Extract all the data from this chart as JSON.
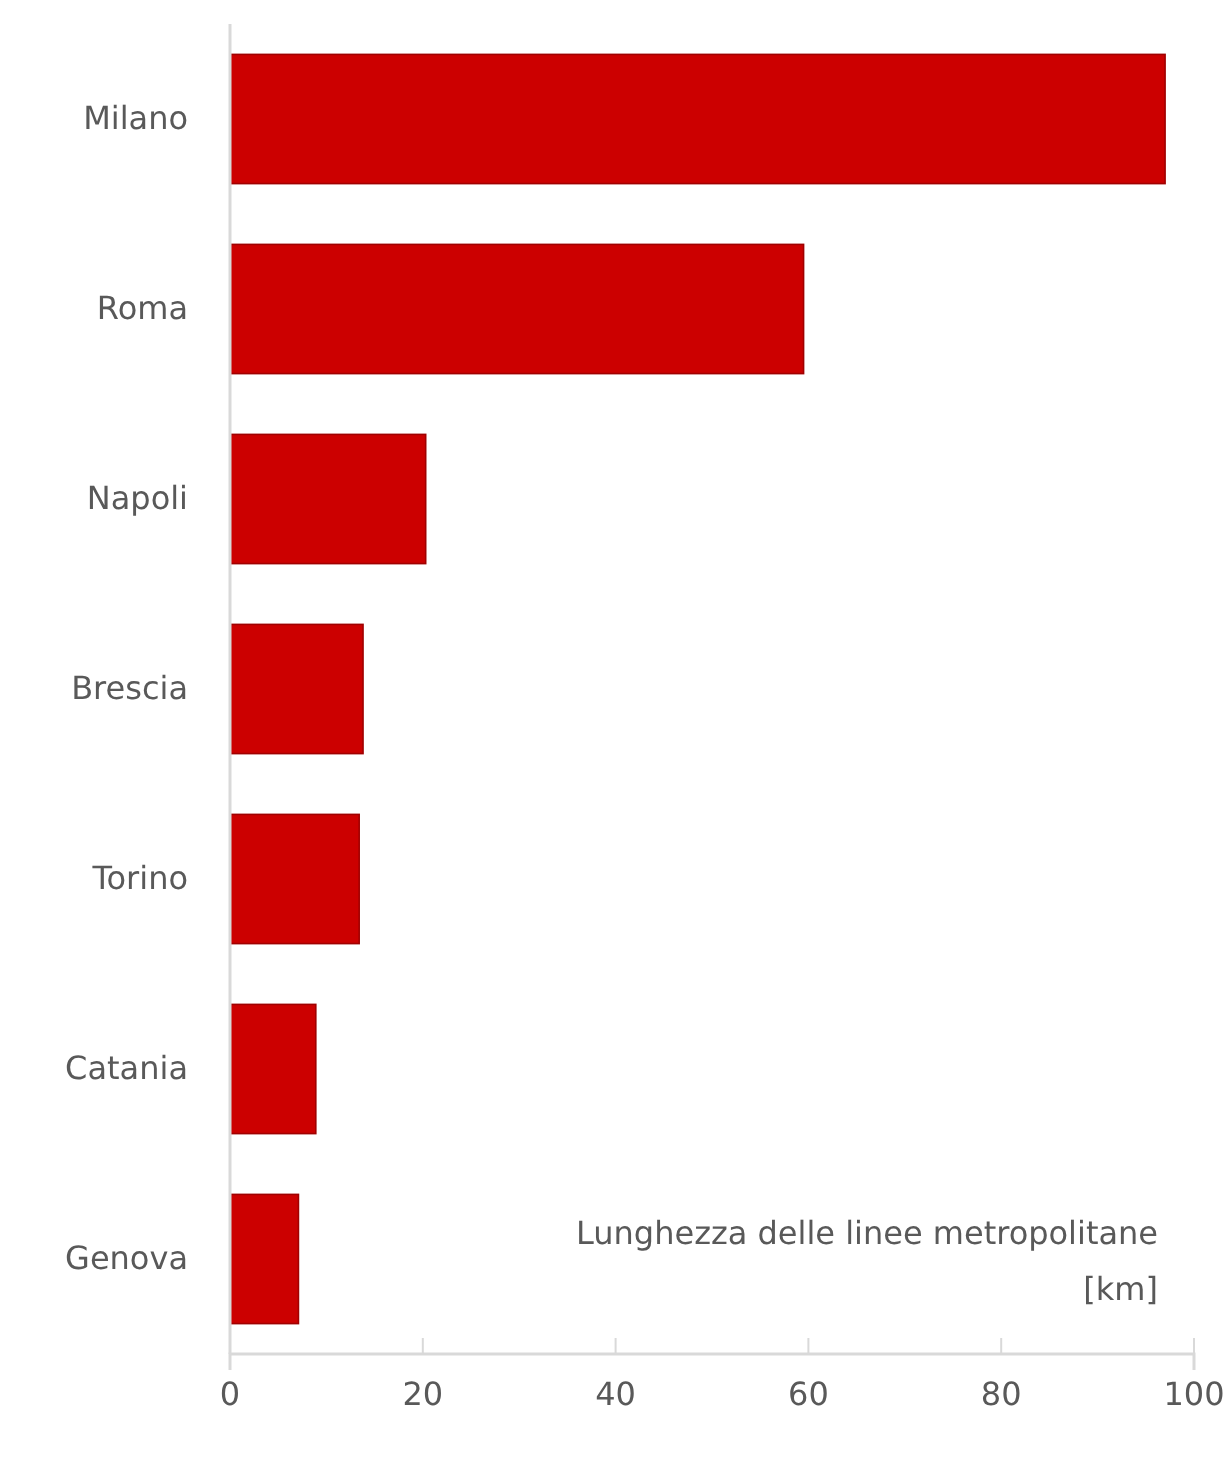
{
  "chart_data": {
    "type": "bar",
    "orientation": "horizontal",
    "categories": [
      "Milano",
      "Roma",
      "Napoli",
      "Brescia",
      "Torino",
      "Catania",
      "Genova"
    ],
    "values": [
      97,
      59.5,
      20.3,
      13.8,
      13.4,
      8.9,
      7.1
    ],
    "color": "#cc0000",
    "xlim": [
      0,
      100
    ],
    "xticks": [
      0,
      20,
      40,
      60,
      80,
      100
    ],
    "grid": false,
    "xlabel": "Lunghezza delle linee metropolitane [km]"
  }
}
